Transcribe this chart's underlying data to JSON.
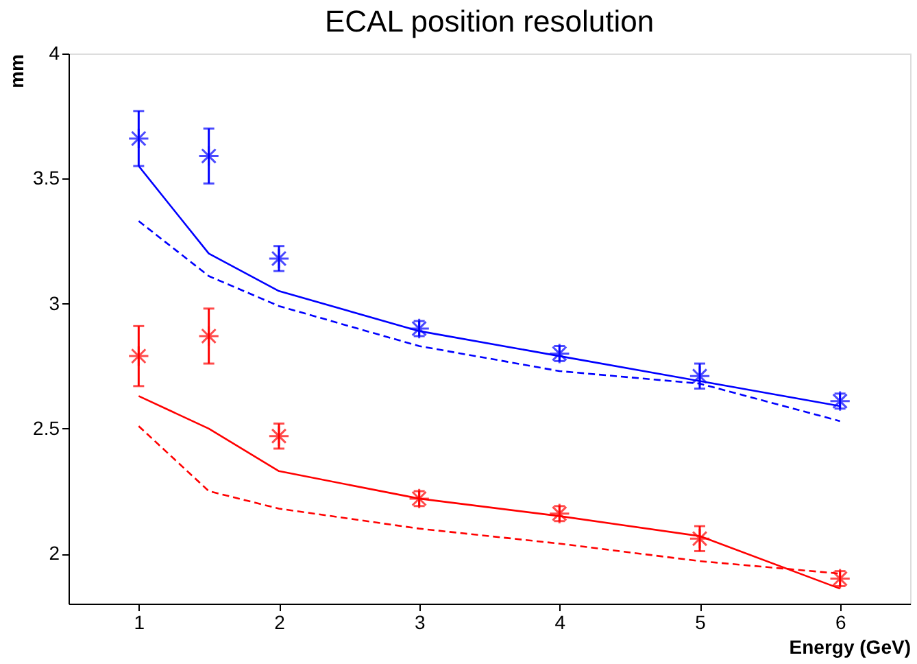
{
  "chart_data": {
    "type": "scatter",
    "title": "ECAL position resolution",
    "xlabel": "Energy (GeV)",
    "ylabel": "mm",
    "x": [
      1,
      1.5,
      2,
      3,
      4,
      5,
      6
    ],
    "xlim": [
      0.5,
      6.5
    ],
    "xticks": [
      1,
      2,
      3,
      4,
      5,
      6
    ],
    "ylim": [
      1.8,
      4
    ],
    "yticks": [
      2,
      2.5,
      3,
      3.5,
      4
    ],
    "grid": false,
    "series": [
      {
        "color": "#0000ff",
        "marker": "cross",
        "values": [
          3.66,
          3.59,
          3.18,
          2.9,
          2.8,
          2.71,
          2.61
        ],
        "errors": [
          0.11,
          0.11,
          0.05,
          0.03,
          0.03,
          0.05,
          0.03
        ]
      },
      {
        "color": "#ff0000",
        "marker": "cross",
        "values": [
          2.79,
          2.87,
          2.47,
          2.22,
          2.16,
          2.06,
          1.9
        ],
        "errors": [
          0.12,
          0.11,
          0.05,
          0.03,
          0.03,
          0.05,
          0.03
        ]
      },
      {
        "type": "line",
        "color": "#0000ff",
        "line_style": "solid",
        "values": [
          3.55,
          3.2,
          3.05,
          2.89,
          2.79,
          2.69,
          2.59
        ]
      },
      {
        "type": "line",
        "color": "#0000ff",
        "line_style": "dashed",
        "values": [
          3.33,
          3.11,
          2.99,
          2.83,
          2.73,
          2.68,
          2.53
        ]
      },
      {
        "type": "line",
        "color": "#ff0000",
        "line_style": "solid",
        "values": [
          2.63,
          2.5,
          2.33,
          2.22,
          2.15,
          2.07,
          1.86
        ]
      },
      {
        "type": "line",
        "color": "#ff0000",
        "line_style": "dashed",
        "values": [
          2.51,
          2.25,
          2.18,
          2.1,
          2.04,
          1.97,
          1.92
        ]
      }
    ]
  }
}
